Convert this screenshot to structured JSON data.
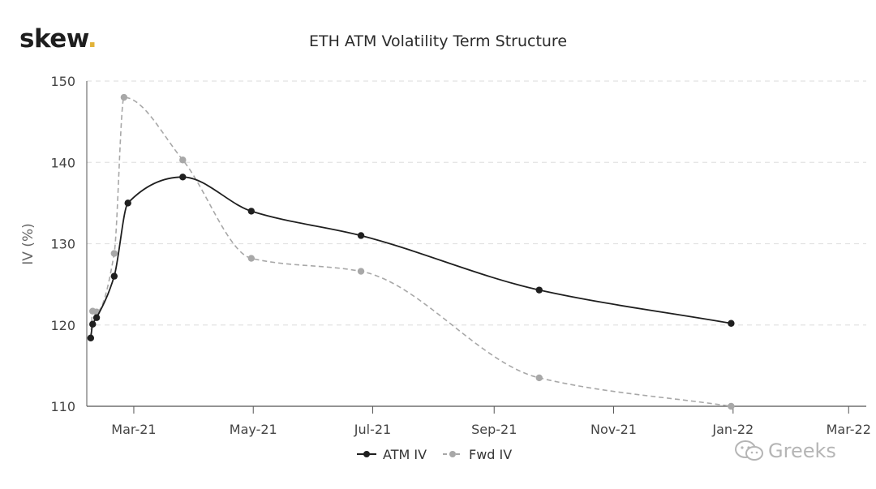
{
  "logo": {
    "text": "skew",
    "dot": "."
  },
  "watermark": {
    "text": "Greeks",
    "icon": "wechat-icon"
  },
  "colors": {
    "atm": "#1f1f1f",
    "fwd": "#a8a8a8",
    "grid": "#e2e2e2",
    "axis": "#555555",
    "accent": "#e2b33a"
  },
  "chart_data": {
    "type": "line",
    "title": "ETH ATM Volatility Term Structure",
    "xlabel": "",
    "ylabel": "IV (%)",
    "ylim": [
      110,
      150
    ],
    "yticks": [
      110,
      120,
      130,
      140,
      150
    ],
    "xlim": [
      "2021-02-05",
      "2022-03-10"
    ],
    "xticks": [
      {
        "date": "2021-03-01",
        "label": "Mar-21"
      },
      {
        "date": "2021-05-01",
        "label": "May-21"
      },
      {
        "date": "2021-07-01",
        "label": "Jul-21"
      },
      {
        "date": "2021-09-01",
        "label": "Sep-21"
      },
      {
        "date": "2021-11-01",
        "label": "Nov-21"
      },
      {
        "date": "2022-01-01",
        "label": "Jan-22"
      },
      {
        "date": "2022-03-01",
        "label": "Mar-22"
      }
    ],
    "grid": "horizontal-dashed",
    "legend": "bottom-center",
    "series": [
      {
        "name": "ATM IV",
        "style": "solid",
        "x": [
          "2021-02-07",
          "2021-02-08",
          "2021-02-10",
          "2021-02-19",
          "2021-02-26",
          "2021-03-26",
          "2021-04-30",
          "2021-06-25",
          "2021-09-24",
          "2021-12-31"
        ],
        "y": [
          118.4,
          120.1,
          120.9,
          126.0,
          135.0,
          138.2,
          134.0,
          131.0,
          124.3,
          120.2
        ]
      },
      {
        "name": "Fwd IV",
        "style": "dashed",
        "x": [
          "2021-02-07",
          "2021-02-08",
          "2021-02-10",
          "2021-02-19",
          "2021-02-24",
          "2021-03-26",
          "2021-04-30",
          "2021-06-25",
          "2021-09-24",
          "2021-12-31"
        ],
        "y": [
          118.4,
          121.7,
          121.6,
          128.8,
          148.0,
          140.3,
          128.2,
          126.6,
          113.5,
          110.0
        ]
      }
    ]
  }
}
